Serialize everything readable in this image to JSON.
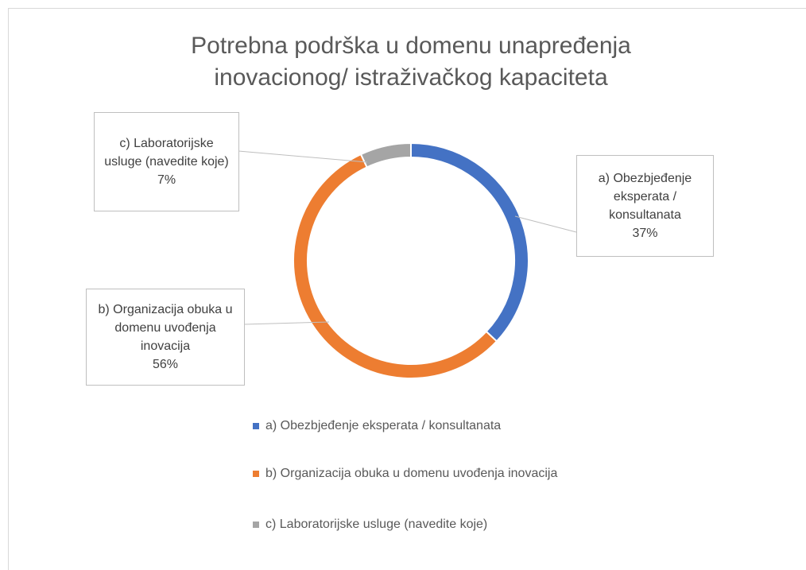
{
  "chart_data": {
    "type": "donut",
    "title": "Potrebna podrška u domenu unapređenja inovacionog/ istraživačkog kapaciteta",
    "categories": [
      "a) Obezbjeđenje eksperata / konsultanata",
      "b) Organizacija obuka u domenu uvođenja inovacija",
      "c) Laboratorijske usluge (navedite koje)"
    ],
    "values": [
      37,
      56,
      7
    ],
    "value_labels": [
      "37%",
      "56%",
      "7%"
    ],
    "colors": [
      "#4472c4",
      "#ed7d31",
      "#a5a5a5"
    ],
    "legend": "bottom"
  }
}
